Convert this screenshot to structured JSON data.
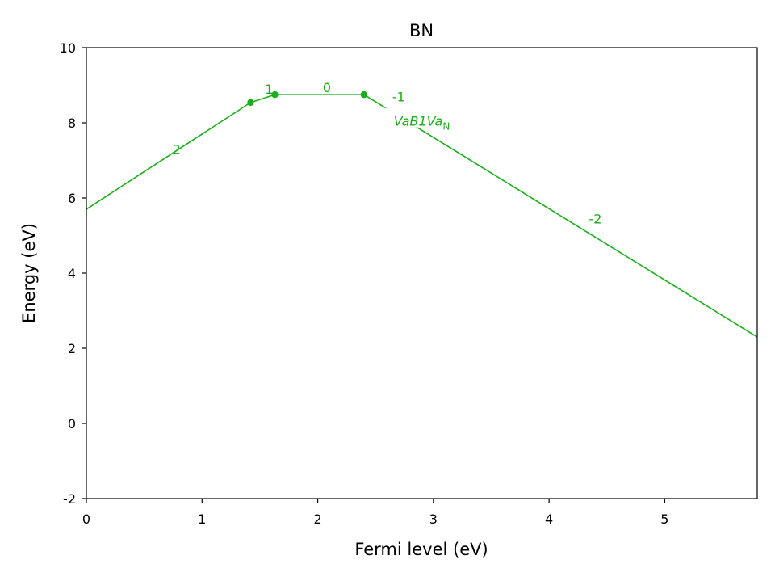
{
  "chart_data": {
    "type": "line",
    "title": "BN",
    "xlabel": "Fermi level (eV)",
    "ylabel": "Energy (eV)",
    "xlim": [
      0,
      5.8
    ],
    "ylim": [
      -2,
      10
    ],
    "xticks": [
      0,
      1,
      2,
      3,
      4,
      5
    ],
    "xtick_labels": [
      "0",
      "1",
      "2",
      "3",
      "4",
      "5"
    ],
    "yticks": [
      -2,
      0,
      2,
      4,
      6,
      8,
      10
    ],
    "ytick_labels": [
      "-2",
      "0",
      "2",
      "4",
      "6",
      "8",
      "10"
    ],
    "grid": false,
    "legend": "none",
    "color": "#1aaf1a",
    "series": [
      {
        "name_main": "VaB1Va",
        "name_sub": "N",
        "x": [
          0,
          1.42,
          1.63,
          2.4,
          5.8
        ],
        "y": [
          5.7,
          8.54,
          8.75,
          8.75,
          2.3
        ],
        "transition_points": [
          {
            "x": 1.42,
            "y": 8.54
          },
          {
            "x": 1.63,
            "y": 8.75
          },
          {
            "x": 2.4,
            "y": 8.75
          }
        ],
        "charge_labels": [
          {
            "text": "2",
            "x": 0.78,
            "y": 7.3
          },
          {
            "text": "1",
            "x": 1.58,
            "y": 8.9
          },
          {
            "text": "0",
            "x": 2.08,
            "y": 8.95
          },
          {
            "text": "-1",
            "x": 2.7,
            "y": 8.7
          },
          {
            "text": "-2",
            "x": 4.4,
            "y": 5.45
          }
        ],
        "label_position": {
          "x": 2.9,
          "y": 8.05
        }
      }
    ]
  }
}
